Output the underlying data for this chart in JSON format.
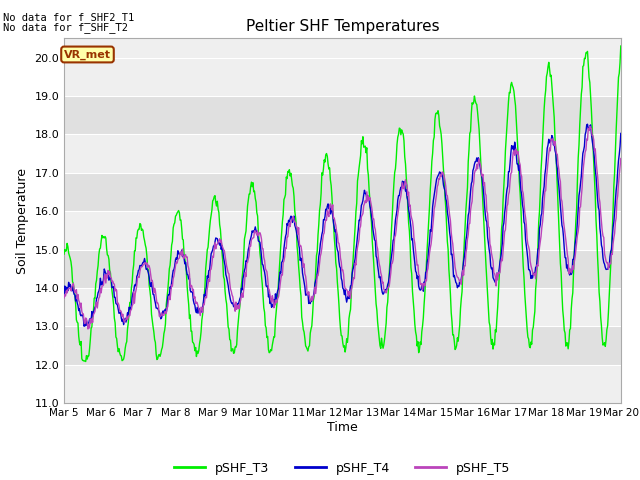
{
  "title": "Peltier SHF Temperatures",
  "ylabel": "Soil Temperature",
  "xlabel": "Time",
  "top_annotation1": "No data for f_SHF2_T1",
  "top_annotation2": "No data for f_SHF_T2",
  "vr_met_label": "VR_met",
  "ylim": [
    11.0,
    20.5
  ],
  "yticks": [
    11.0,
    12.0,
    13.0,
    14.0,
    15.0,
    16.0,
    17.0,
    18.0,
    19.0,
    20.0
  ],
  "xtick_labels": [
    "Mar 5",
    "Mar 6",
    "Mar 7",
    "Mar 8",
    "Mar 9",
    "Mar 10",
    "Mar 11",
    "Mar 12",
    "Mar 13",
    "Mar 14",
    "Mar 15",
    "Mar 16",
    "Mar 17",
    "Mar 18",
    "Mar 19",
    "Mar 20"
  ],
  "colors": {
    "T3": "#00EE00",
    "T4": "#0000CC",
    "T5": "#BB44BB",
    "vr_met_bg": "#FFFFAA",
    "vr_met_border": "#993300",
    "vr_met_text": "#993300",
    "plot_bg_light": "#EFEFEF",
    "plot_bg_dark": "#E0E0E0"
  },
  "legend_labels": [
    "pSHF_T3",
    "pSHF_T4",
    "pSHF_T5"
  ],
  "line_width": 1.0,
  "n_days": 15,
  "n_points": 720
}
